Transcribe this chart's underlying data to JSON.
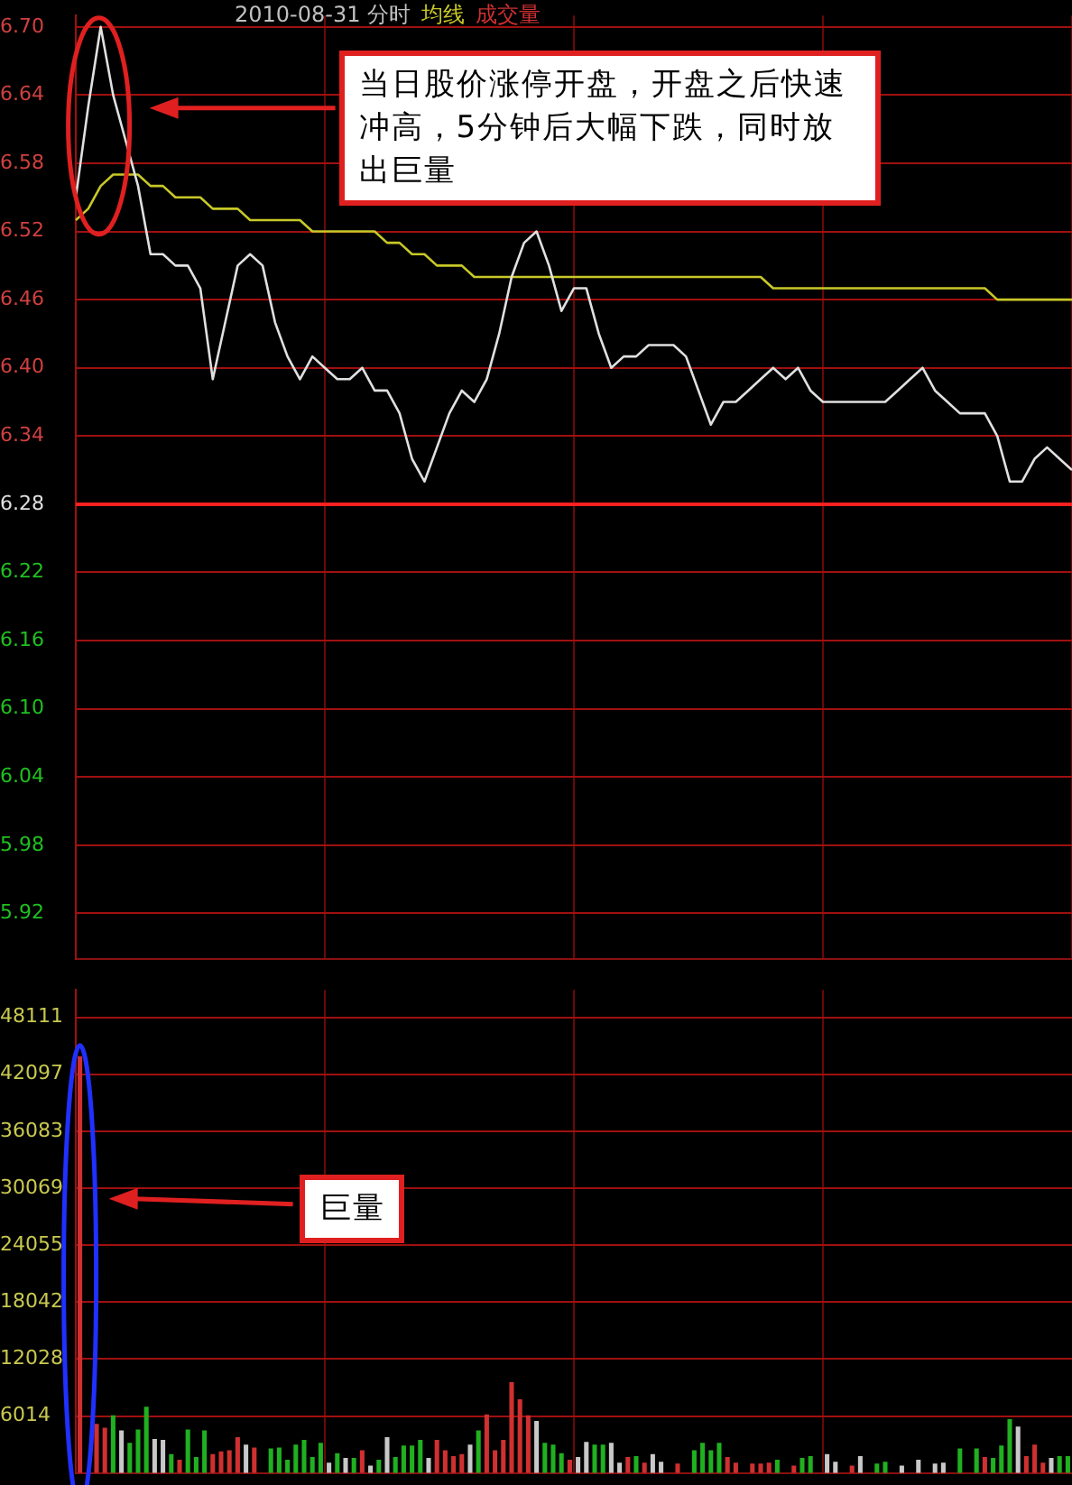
{
  "chart_data": [
    {
      "type": "line",
      "title": "2010-08-31 分时",
      "categories": [
        null,
        null,
        null,
        null,
        null,
        null,
        null,
        null,
        null,
        null,
        null,
        null,
        null,
        null,
        null,
        null,
        null,
        null,
        null,
        null,
        null,
        null,
        null,
        null,
        null,
        null,
        null,
        null,
        null,
        null,
        null,
        null,
        null,
        null,
        null,
        null,
        null,
        null,
        null,
        null,
        null,
        null,
        null,
        null,
        null,
        null,
        null,
        null,
        null,
        null,
        null,
        null,
        null,
        null,
        null,
        null,
        null,
        null,
        null,
        null,
        null,
        null,
        null,
        null,
        null,
        null,
        null,
        null,
        null,
        null,
        null,
        null,
        null,
        null,
        null,
        null,
        null,
        null,
        null,
        null,
        null
      ],
      "ylim": [
        5.88,
        6.71
      ],
      "yticks": [
        {
          "value": 6.7,
          "label": "6.70"
        },
        6.64,
        6.58,
        6.52,
        6.46,
        {
          "value": 6.4,
          "label": "6.40"
        },
        6.34,
        6.28,
        6.22,
        6.16,
        {
          "value": 6.1,
          "label": "6.10"
        },
        6.04,
        5.98,
        5.92
      ],
      "tick_labels": "y",
      "grid": true,
      "ref_lines": [
        {
          "axis": "y",
          "value": 6.28,
          "color": "#ff2020"
        }
      ],
      "annotations": [
        "当日股价涨停开盘，开盘之后快速冲高，5分钟后大幅下跌，同时放出巨量"
      ],
      "series": [
        {
          "color": "#e0e0e0",
          "values": [
            6.55,
            6.63,
            6.7,
            6.64,
            6.6,
            6.56,
            6.5,
            6.5,
            6.49,
            6.49,
            6.47,
            6.39,
            6.44,
            6.49,
            6.5,
            6.49,
            6.44,
            6.41,
            6.39,
            6.41,
            6.4,
            6.39,
            6.39,
            6.4,
            6.38,
            6.38,
            6.36,
            6.32,
            6.3,
            6.33,
            6.36,
            6.38,
            6.37,
            6.39,
            6.43,
            6.48,
            6.51,
            6.52,
            6.49,
            6.45,
            6.47,
            6.47,
            6.43,
            6.4,
            6.41,
            6.41,
            6.42,
            6.42,
            6.42,
            6.41,
            6.38,
            6.35,
            6.37,
            6.37,
            6.38,
            6.39,
            6.4,
            6.39,
            6.4,
            6.38,
            6.37,
            6.37,
            6.37,
            6.37,
            6.37,
            6.37,
            6.38,
            6.39,
            6.4,
            6.38,
            6.37,
            6.36,
            6.36,
            6.36,
            6.34,
            6.3,
            6.3,
            6.32,
            6.33,
            6.32,
            6.31
          ]
        },
        {
          "name": "均线",
          "color": "#c8c828",
          "values": [
            6.53,
            6.54,
            6.56,
            6.57,
            6.57,
            6.57,
            6.56,
            6.56,
            6.55,
            6.55,
            6.55,
            6.54,
            6.54,
            6.54,
            6.53,
            6.53,
            6.53,
            6.53,
            6.53,
            6.52,
            6.52,
            6.52,
            6.52,
            6.52,
            6.52,
            6.51,
            6.51,
            6.5,
            6.5,
            6.49,
            6.49,
            6.49,
            6.48,
            6.48,
            6.48,
            6.48,
            6.48,
            6.48,
            6.48,
            6.48,
            6.48,
            6.48,
            6.48,
            6.48,
            6.48,
            6.48,
            6.48,
            6.48,
            6.48,
            6.48,
            6.48,
            6.48,
            6.48,
            6.48,
            6.48,
            6.48,
            6.47,
            6.47,
            6.47,
            6.47,
            6.47,
            6.47,
            6.47,
            6.47,
            6.47,
            6.47,
            6.47,
            6.47,
            6.47,
            6.47,
            6.47,
            6.47,
            6.47,
            6.47,
            6.46,
            6.46,
            6.46,
            6.46,
            6.46,
            6.46,
            6.46
          ]
        }
      ]
    },
    {
      "type": "bar",
      "categories": [
        null,
        null,
        null,
        null,
        null,
        null,
        null,
        null,
        null,
        null,
        null,
        null,
        null,
        null,
        null,
        null,
        null,
        null,
        null,
        null,
        null,
        null,
        null,
        null,
        null,
        null,
        null,
        null,
        null,
        null,
        null,
        null,
        null,
        null,
        null,
        null,
        null,
        null,
        null,
        null,
        null,
        null,
        null,
        null,
        null,
        null,
        null,
        null,
        null,
        null,
        null,
        null,
        null,
        null,
        null,
        null,
        null,
        null,
        null,
        null,
        null,
        null,
        null,
        null,
        null,
        null,
        null,
        null,
        null,
        null,
        null,
        null,
        null,
        null,
        null,
        null,
        null,
        null,
        null,
        null,
        null,
        null,
        null,
        null,
        null,
        null,
        null,
        null,
        null,
        null,
        null,
        null,
        null,
        null,
        null,
        null,
        null,
        null,
        null,
        null,
        null,
        null,
        null,
        null,
        null,
        null,
        null,
        null,
        null,
        null,
        null,
        null,
        null,
        null,
        null,
        null,
        null,
        null,
        null,
        null
      ],
      "ylim": [
        0,
        51000
      ],
      "yticks": [
        6014,
        12028,
        18042,
        24055,
        30069,
        36083,
        42097,
        48111
      ],
      "tick_labels": "y",
      "grid": true,
      "annotations": [
        "巨量"
      ],
      "series": [
        {
          "name": "成交量",
          "color": "#d03030",
          "values": [
            44000,
            null,
            5200,
            4800,
            6100,
            4500,
            3200,
            4600,
            7000,
            3600,
            3500,
            2000,
            1400,
            4600,
            1700,
            4500,
            2000,
            2300,
            2400,
            3800,
            3000,
            2700,
            null,
            2600,
            2700,
            1400,
            3000,
            3500,
            1700,
            3200,
            1100,
            2100,
            1600,
            1600,
            2400,
            800,
            1400,
            3800,
            1700,
            2900,
            2900,
            3500,
            1600,
            3500,
            2400,
            1800,
            2000,
            3000,
            4500,
            6200,
            2400,
            3500,
            9600,
            7800,
            6100,
            5500,
            3200,
            3000,
            2100,
            1400,
            1700,
            3300,
            3000,
            3000,
            3200,
            1100,
            1700,
            1800,
            1100,
            2000,
            1200,
            null,
            1000,
            null,
            2400,
            3200,
            2400,
            3200,
            1700,
            1100,
            null,
            1000,
            1000,
            1100,
            1400,
            null,
            800,
            1600,
            1800,
            null,
            2000,
            1200,
            null,
            800,
            1800,
            null,
            1000,
            1200,
            null,
            800,
            null,
            1400,
            null,
            1000,
            1100,
            null,
            2600,
            null,
            2600,
            1700,
            1600,
            2900,
            5700,
            4900,
            1800,
            3000,
            1100,
            1600,
            1800,
            1800
          ],
          "colors": [
            "#d03030",
            "#c8c8c8",
            "#d03030",
            "#d03030",
            "#20b020",
            "#c8c8c8",
            "#20b020",
            "#20b020",
            "#20b020",
            "#c8c8c8",
            "#c8c8c8",
            "#20b020",
            "#d03030",
            "#20b020",
            "#20b020",
            "#20b020",
            "#d03030",
            "#d03030",
            "#d03030",
            "#d03030",
            "#c8c8c8",
            "#d03030",
            "#c8c8c8",
            "#20b020",
            "#20b020",
            "#20b020",
            "#20b020",
            "#20b020",
            "#20b020",
            "#20b020",
            "#c8c8c8",
            "#20b020",
            "#c8c8c8",
            "#20b020",
            "#d03030",
            "#c8c8c8",
            "#20b020",
            "#c8c8c8",
            "#20b020",
            "#20b020",
            "#20b020",
            "#20b020",
            "#c8c8c8",
            "#d03030",
            "#d03030",
            "#d03030",
            "#d03030",
            "#c8c8c8",
            "#20b020",
            "#d03030",
            "#d03030",
            "#d03030",
            "#d03030",
            "#d03030",
            "#d03030",
            "#c8c8c8",
            "#20b020",
            "#20b020",
            "#20b020",
            "#d03030",
            "#c8c8c8",
            "#c8c8c8",
            "#20b020",
            "#20b020",
            "#c8c8c8",
            "#c8c8c8",
            "#d03030",
            "#20b020",
            "#d03030",
            "#c8c8c8",
            "#c8c8c8",
            "#c8c8c8",
            "#d03030",
            "#c8c8c8",
            "#20b020",
            "#20b020",
            "#20b020",
            "#20b020",
            "#d03030",
            "#d03030",
            "#c8c8c8",
            "#d03030",
            "#d03030",
            "#d03030",
            "#20b020",
            "#c8c8c8",
            "#d03030",
            "#20b020",
            "#20b020",
            "#c8c8c8",
            "#c8c8c8",
            "#c8c8c8",
            "#c8c8c8",
            "#d03030",
            "#c8c8c8",
            "#c8c8c8",
            "#20b020",
            "#20b020",
            "#c8c8c8",
            "#c8c8c8",
            "#c8c8c8",
            "#c8c8c8",
            "#c8c8c8",
            "#c8c8c8",
            "#c8c8c8",
            "#c8c8c8",
            "#20b020",
            "#c8c8c8",
            "#20b020",
            "#d03030",
            "#20b020",
            "#20b020",
            "#20b020",
            "#c8c8c8",
            "#d03030",
            "#d03030",
            "#d03030",
            "#c8c8c8",
            "#20b020",
            "#20b020"
          ]
        }
      ]
    }
  ]
}
